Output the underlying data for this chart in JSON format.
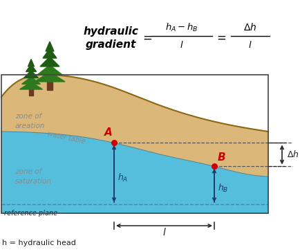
{
  "bg_color": "#ffffff",
  "soil_color": "#dbb87a",
  "water_color": "#55bedd",
  "text_color_gray": "#8a8a8a",
  "text_color_dark": "#222222",
  "text_color_red": "#cc0000",
  "arrow_color": "#1a3a6a",
  "border_color": "#444444",
  "tree_dark": "#1e5c14",
  "tree_mid": "#2d7a1e",
  "trunk_color": "#6b3a1e",
  "zone_aeration": "zone of\nareation",
  "zone_saturation": "zone of\nsaturation",
  "water_table_label": "water table",
  "reference_plane": "reference plane",
  "footnote": "h = hydraulic head",
  "point_A_label": "A",
  "point_B_label": "B"
}
